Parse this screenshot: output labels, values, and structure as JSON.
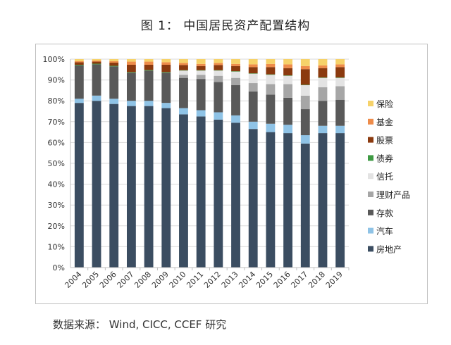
{
  "header": {
    "title": "图 1：  中国居民资产配置结构"
  },
  "footer": {
    "source": "数据来源：  Wind, CICC, CCEF 研究"
  },
  "chart_data": {
    "type": "bar",
    "stacked": true,
    "title": "图 1：  中国居民资产配置结构",
    "xlabel": "",
    "ylabel": "",
    "ylim": [
      0,
      100
    ],
    "yticks": [
      "0%",
      "10%",
      "20%",
      "30%",
      "40%",
      "50%",
      "60%",
      "70%",
      "80%",
      "90%",
      "100%"
    ],
    "grid": true,
    "legend_position": "right",
    "categories": [
      "2004",
      "2005",
      "2006",
      "2007",
      "2008",
      "2009",
      "2010",
      "2011",
      "2012",
      "2013",
      "2014",
      "2015",
      "2016",
      "2017",
      "2018",
      "2019"
    ],
    "series": [
      {
        "name": "房地产",
        "color": "#3b4d61",
        "values": [
          79,
          80,
          78.5,
          77.5,
          77.5,
          76.5,
          73.5,
          72.5,
          71,
          69.5,
          66.5,
          65,
          64.5,
          59.5,
          64.5,
          64.5
        ]
      },
      {
        "name": "汽车",
        "color": "#8fc3e6",
        "values": [
          2,
          2.5,
          2.5,
          2.5,
          2.5,
          2.5,
          3,
          3,
          3.5,
          3.5,
          3.5,
          4,
          4,
          4,
          3.5,
          3.5
        ]
      },
      {
        "name": "存款",
        "color": "#595959",
        "values": [
          16,
          15,
          15.5,
          13.5,
          14.5,
          14.5,
          14.5,
          15,
          14.5,
          14.5,
          14.5,
          14,
          13,
          12.5,
          12,
          12.5
        ]
      },
      {
        "name": "理财产品",
        "color": "#a6a6a6",
        "values": [
          0,
          0,
          0,
          0,
          0,
          0,
          1.5,
          2,
          3,
          3.5,
          4,
          5,
          6.5,
          6.5,
          6.5,
          6.5
        ]
      },
      {
        "name": "信托",
        "color": "#e3e3e3",
        "values": [
          0,
          0,
          0,
          0,
          0,
          0,
          2,
          2,
          2.5,
          3,
          4.5,
          4.5,
          4,
          5,
          4.5,
          4
        ]
      },
      {
        "name": "债券",
        "color": "#3e9a43",
        "values": [
          0.3,
          0.3,
          0.3,
          0.3,
          0.3,
          0.3,
          0.2,
          0.2,
          0.2,
          0.2,
          0.2,
          0.2,
          0.2,
          0.2,
          0.2,
          0.2
        ]
      },
      {
        "name": "股票",
        "color": "#8b3a0f",
        "values": [
          1.2,
          1,
          1.5,
          3.5,
          2.5,
          3.5,
          2.5,
          2,
          2.5,
          2.5,
          3,
          3.5,
          3.5,
          7.5,
          4.5,
          5
        ]
      },
      {
        "name": "基金",
        "color": "#ee8c4a",
        "values": [
          0.5,
          0.5,
          0.7,
          1.5,
          1.5,
          1.2,
          1,
          1,
          1,
          1,
          1.3,
          1.5,
          1.8,
          1.5,
          1.3,
          1.3
        ]
      },
      {
        "name": "保险",
        "color": "#f6d26a",
        "values": [
          1,
          0.7,
          1,
          1.2,
          1.2,
          1.5,
          1.8,
          2.3,
          1.8,
          2.3,
          2.5,
          2.3,
          2.5,
          3.3,
          3,
          2.5
        ]
      }
    ],
    "legend_order": [
      "保险",
      "基金",
      "股票",
      "债券",
      "信托",
      "理财产品",
      "存款",
      "汽车",
      "房地产"
    ]
  }
}
